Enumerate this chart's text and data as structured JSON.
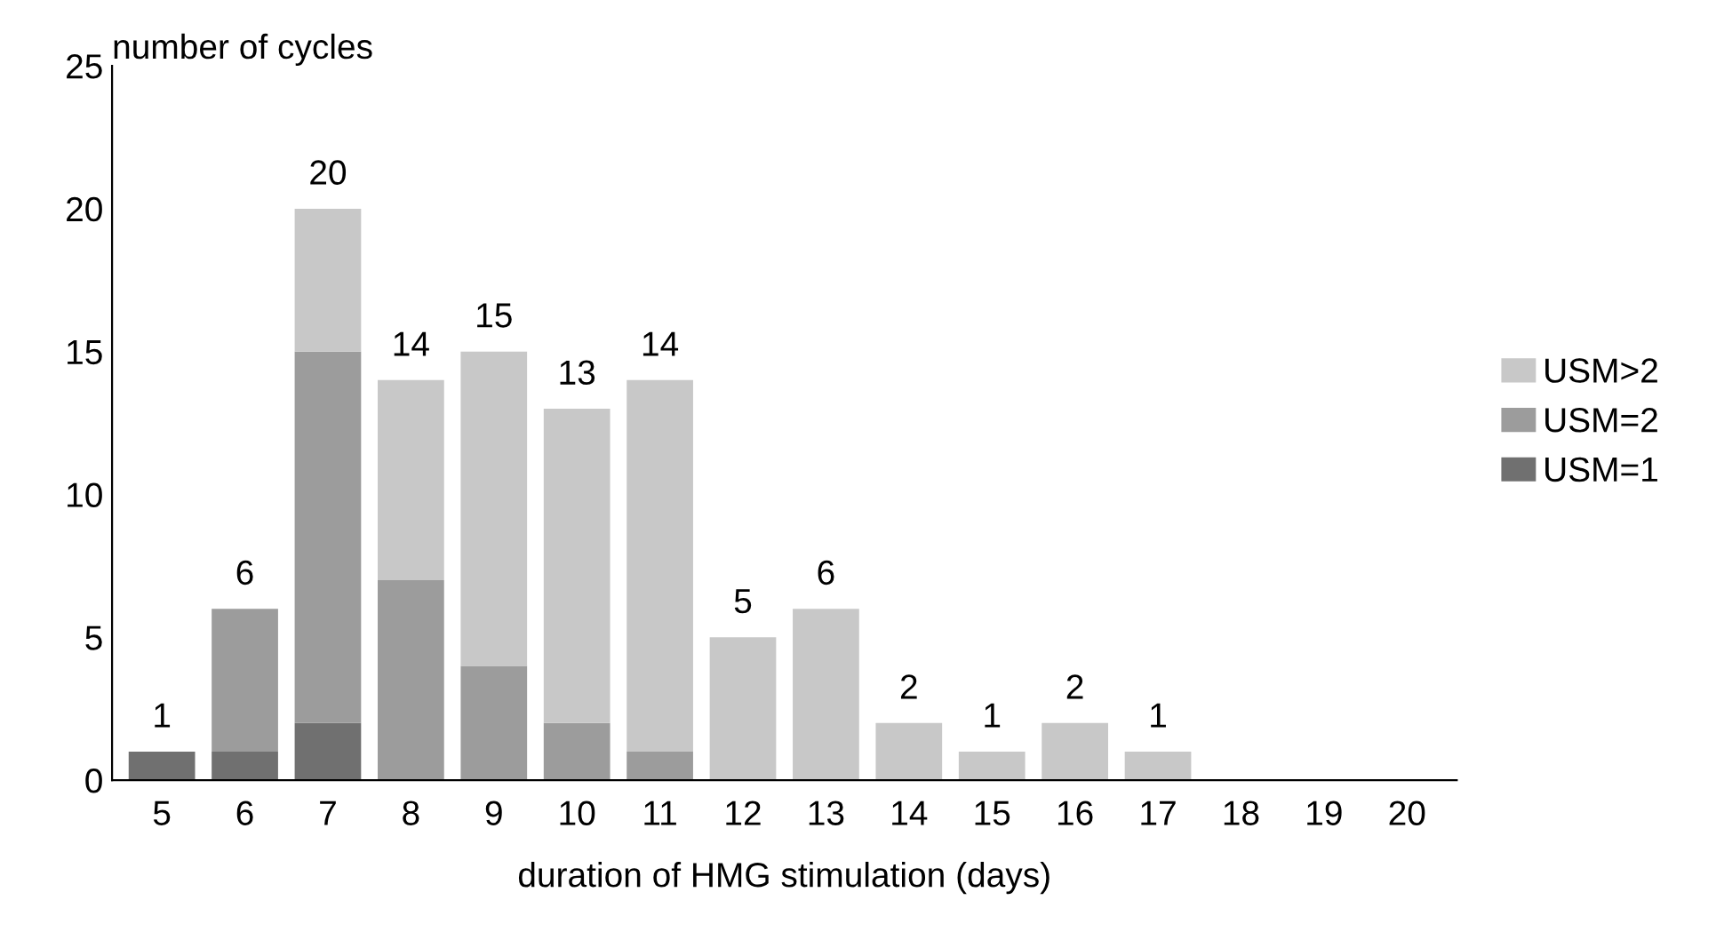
{
  "chart_data": {
    "type": "bar",
    "stacked": true,
    "ylabel": "number of cycles",
    "xlabel": "duration of HMG stimulation (days)",
    "categories": [
      "5",
      "6",
      "7",
      "8",
      "9",
      "10",
      "11",
      "12",
      "13",
      "14",
      "15",
      "16",
      "17",
      "18",
      "19",
      "20"
    ],
    "series": [
      {
        "name": "USM=1",
        "color": "#707070",
        "values": [
          1,
          1,
          2,
          0,
          0,
          0,
          0,
          0,
          0,
          0,
          0,
          0,
          0,
          0,
          0,
          0
        ]
      },
      {
        "name": "USM=2",
        "color": "#9c9c9c",
        "values": [
          0,
          5,
          13,
          7,
          4,
          2,
          1,
          0,
          0,
          0,
          0,
          0,
          0,
          0,
          0,
          0
        ]
      },
      {
        "name": "USM>2",
        "color": "#c8c8c8",
        "values": [
          0,
          0,
          5,
          7,
          11,
          11,
          13,
          5,
          6,
          2,
          1,
          2,
          1,
          0,
          0,
          0
        ]
      }
    ],
    "totals": [
      "1",
      "6",
      "20",
      "14",
      "15",
      "13",
      "14",
      "5",
      "6",
      "2",
      "1",
      "2",
      "1",
      null,
      null,
      null
    ],
    "ylim": [
      0,
      25
    ],
    "yticks": [
      0,
      5,
      10,
      15,
      20,
      25
    ],
    "grid": false,
    "legend": "right"
  }
}
